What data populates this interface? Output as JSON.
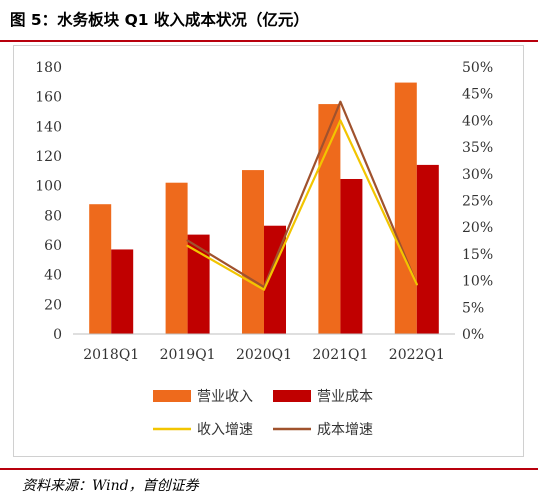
{
  "figure": {
    "title": "图 5：水务板块 Q1 收入成本状况（亿元）",
    "source": "资料来源：Wind，首创证券"
  },
  "colors": {
    "revenue": "#ee6a1c",
    "cost": "#c00000",
    "revenue_growth": "#f2c500",
    "cost_growth": "#a0522d",
    "accent_rule": "#b8000d"
  },
  "chart_data": {
    "type": "bar",
    "categories": [
      "2018Q1",
      "2019Q1",
      "2020Q1",
      "2021Q1",
      "2022Q1"
    ],
    "series": [
      {
        "name": "营业收入",
        "type": "bar",
        "axis": "left",
        "values": [
          87.5,
          102,
          110.5,
          155,
          169.5
        ]
      },
      {
        "name": "营业成本",
        "type": "bar",
        "axis": "left",
        "values": [
          57,
          67,
          73,
          104.5,
          114
        ]
      },
      {
        "name": "收入增速",
        "type": "line",
        "axis": "right",
        "values": [
          null,
          0.165,
          0.083,
          0.4,
          0.093
        ]
      },
      {
        "name": "成本增速",
        "type": "line",
        "axis": "right",
        "values": [
          null,
          0.175,
          0.088,
          0.435,
          0.093
        ]
      }
    ],
    "y_left": {
      "min": 0,
      "max": 180,
      "step": 20,
      "tick_labels": [
        "0",
        "20",
        "40",
        "60",
        "80",
        "100",
        "120",
        "140",
        "160",
        "180"
      ]
    },
    "y_right": {
      "min": 0,
      "max": 0.5,
      "step": 0.05,
      "tick_labels": [
        "0%",
        "5%",
        "10%",
        "15%",
        "20%",
        "25%",
        "30%",
        "35%",
        "40%",
        "45%",
        "50%"
      ]
    },
    "grid": false,
    "legend": "bottom",
    "title": "",
    "xlabel": "",
    "ylabel": ""
  }
}
